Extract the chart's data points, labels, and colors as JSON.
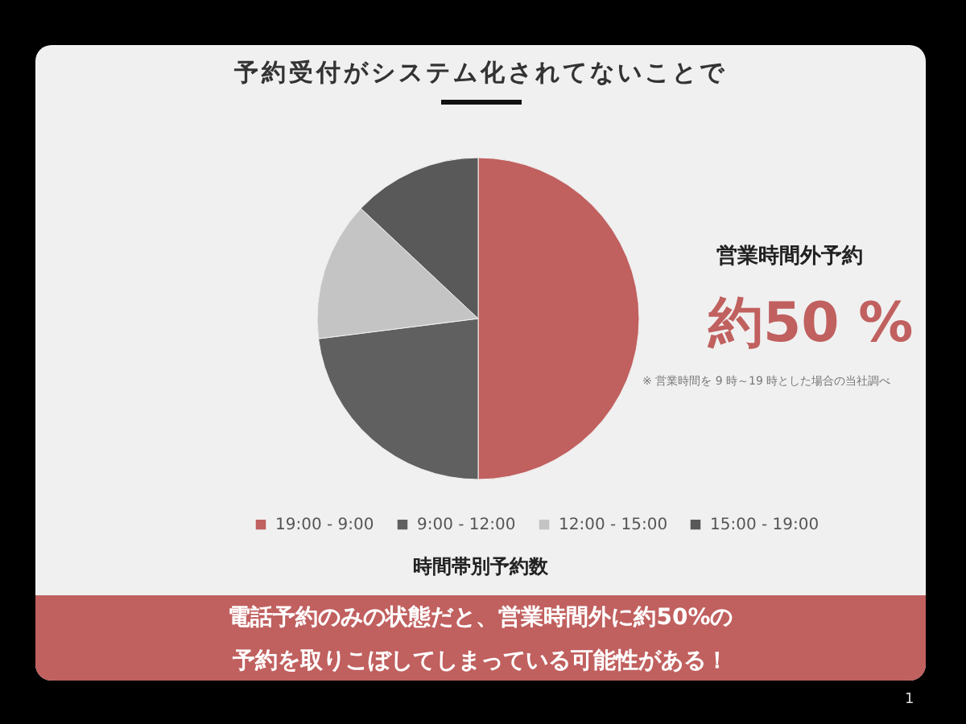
{
  "chart_data": {
    "type": "pie",
    "title": "予約受付がシステム化されてないことで",
    "categories": [
      "19:00 - 9:00",
      "9:00 - 12:00",
      "12:00 - 15:00",
      "15:00 - 19:00"
    ],
    "values": [
      50,
      23,
      14,
      13
    ],
    "colors": [
      "#c0605f",
      "#606060",
      "#c4c4c4",
      "#595959"
    ],
    "legend": "bottom",
    "annotations": [
      "営業時間外予約",
      "約50 %",
      "※ 営業時間を 9 時～19 時とした場合の当社調べ",
      "時間帯別予約数",
      "電話予約のみの状態だと、営業時間外に約50%の",
      "予約を取りこぼしてしまっている可能性がある！",
      "1"
    ]
  }
}
